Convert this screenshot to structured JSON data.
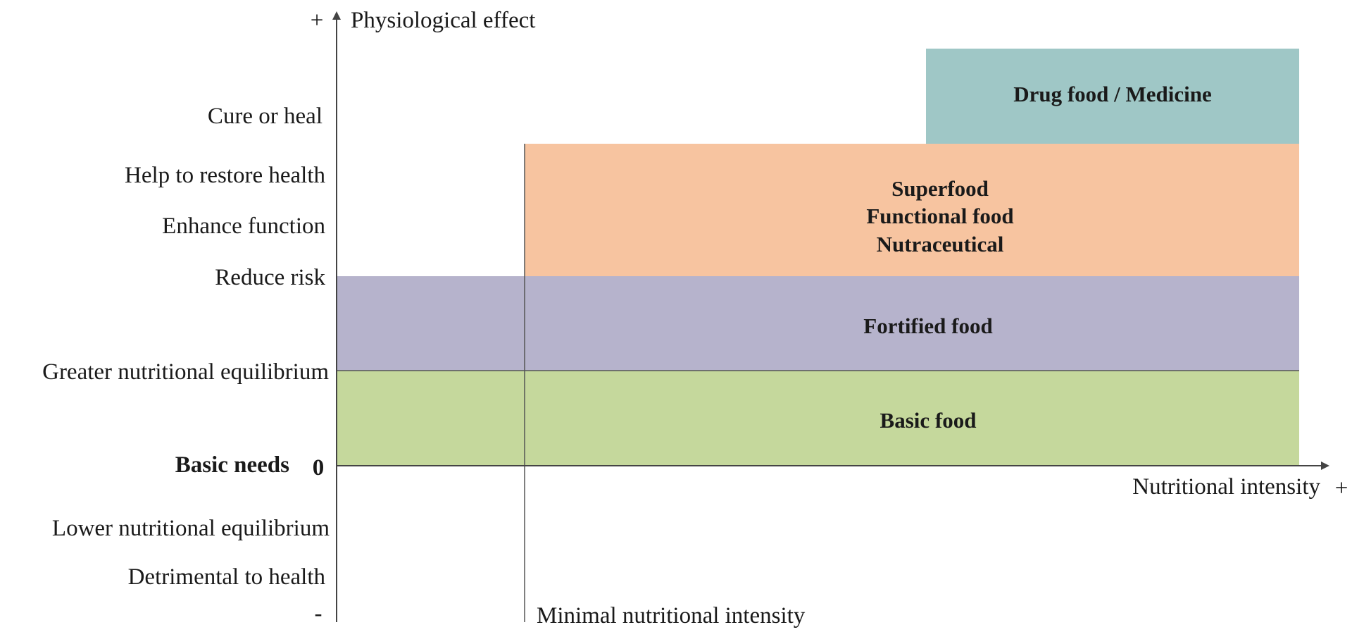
{
  "axes": {
    "y_title": "Physiological effect",
    "x_title": "Nutritional intensity",
    "y_plus": "+",
    "y_minus": "-",
    "x_plus": "+",
    "zero": "0",
    "min_line_label": "Minimal nutritional intensity"
  },
  "y_levels": [
    {
      "key": "cure",
      "label": "Cure or heal"
    },
    {
      "key": "restore",
      "label": "Help to restore health"
    },
    {
      "key": "enhance",
      "label": "Enhance function"
    },
    {
      "key": "reduce",
      "label": "Reduce risk"
    },
    {
      "key": "greater",
      "label": "Greater nutritional equilibrium"
    },
    {
      "key": "basic",
      "label": "Basic needs"
    },
    {
      "key": "lower",
      "label": "Lower nutritional equilibrium"
    },
    {
      "key": "detrimental",
      "label": "Detrimental to health"
    }
  ],
  "zones": [
    {
      "key": "drug",
      "lines": [
        "Drug food / Medicine"
      ],
      "color": "#9fc7c6"
    },
    {
      "key": "super",
      "lines": [
        "Superfood",
        "Functional food",
        "Nutraceutical"
      ],
      "color": "#f7c4a0"
    },
    {
      "key": "fortified",
      "lines": [
        "Fortified food"
      ],
      "color": "#b6b3cc"
    },
    {
      "key": "basic",
      "lines": [
        "Basic food"
      ],
      "color": "#c5d89c"
    }
  ]
}
